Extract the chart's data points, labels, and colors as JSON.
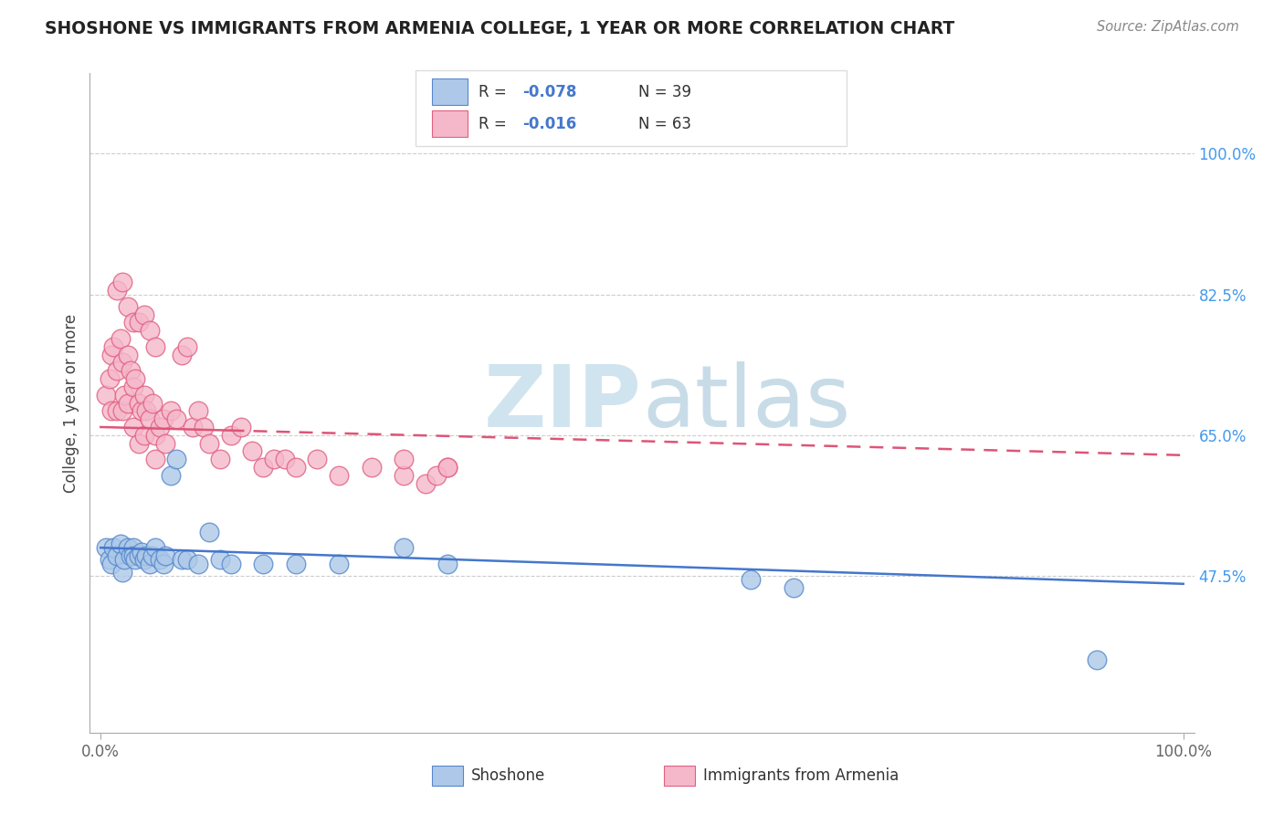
{
  "title": "SHOSHONE VS IMMIGRANTS FROM ARMENIA COLLEGE, 1 YEAR OR MORE CORRELATION CHART",
  "source": "Source: ZipAtlas.com",
  "ylabel": "College, 1 year or more",
  "xlim": [
    -0.01,
    1.01
  ],
  "ylim": [
    0.28,
    1.1
  ],
  "x_tick_labels": [
    "0.0%",
    "100.0%"
  ],
  "x_tick_pos": [
    0.0,
    1.0
  ],
  "y_tick_labels": [
    "47.5%",
    "65.0%",
    "82.5%",
    "100.0%"
  ],
  "y_tick_positions": [
    0.475,
    0.65,
    0.825,
    1.0
  ],
  "legend_r1": "-0.078",
  "legend_n1": "N = 39",
  "legend_r2": "-0.016",
  "legend_n2": "N = 63",
  "color_blue": "#adc8e8",
  "color_pink": "#f5b8cb",
  "edge_blue": "#5588cc",
  "edge_pink": "#e06080",
  "line_blue": "#4477cc",
  "line_pink": "#dd5577",
  "watermark_color": "#d0e4f0",
  "grid_color": "#cccccc",
  "title_color": "#222222",
  "source_color": "#888888",
  "ylabel_color": "#444444",
  "tick_color": "#666666",
  "right_tick_color": "#4499ee",
  "shoshone_x": [
    0.005,
    0.008,
    0.01,
    0.012,
    0.015,
    0.018,
    0.02,
    0.022,
    0.025,
    0.028,
    0.03,
    0.03,
    0.032,
    0.035,
    0.038,
    0.04,
    0.042,
    0.045,
    0.048,
    0.05,
    0.055,
    0.058,
    0.06,
    0.065,
    0.07,
    0.075,
    0.08,
    0.09,
    0.1,
    0.11,
    0.12,
    0.15,
    0.18,
    0.22,
    0.28,
    0.32,
    0.6,
    0.64,
    0.92
  ],
  "shoshone_y": [
    0.51,
    0.495,
    0.49,
    0.51,
    0.5,
    0.515,
    0.48,
    0.495,
    0.51,
    0.5,
    0.51,
    0.5,
    0.495,
    0.5,
    0.505,
    0.495,
    0.5,
    0.49,
    0.5,
    0.51,
    0.495,
    0.49,
    0.5,
    0.6,
    0.62,
    0.495,
    0.495,
    0.49,
    0.53,
    0.495,
    0.49,
    0.49,
    0.49,
    0.49,
    0.51,
    0.49,
    0.47,
    0.46,
    0.37
  ],
  "armenia_x": [
    0.005,
    0.008,
    0.01,
    0.01,
    0.012,
    0.015,
    0.015,
    0.018,
    0.02,
    0.02,
    0.022,
    0.025,
    0.025,
    0.028,
    0.03,
    0.03,
    0.032,
    0.035,
    0.035,
    0.038,
    0.04,
    0.04,
    0.042,
    0.045,
    0.048,
    0.05,
    0.05,
    0.055,
    0.058,
    0.06,
    0.065,
    0.07,
    0.075,
    0.08,
    0.085,
    0.09,
    0.095,
    0.1,
    0.11,
    0.12,
    0.13,
    0.14,
    0.15,
    0.16,
    0.17,
    0.18,
    0.2,
    0.22,
    0.25,
    0.28,
    0.3,
    0.32,
    0.015,
    0.02,
    0.025,
    0.03,
    0.035,
    0.04,
    0.045,
    0.05,
    0.28,
    0.31,
    0.32
  ],
  "armenia_y": [
    0.7,
    0.72,
    0.75,
    0.68,
    0.76,
    0.73,
    0.68,
    0.77,
    0.74,
    0.68,
    0.7,
    0.75,
    0.69,
    0.73,
    0.71,
    0.66,
    0.72,
    0.69,
    0.64,
    0.68,
    0.7,
    0.65,
    0.68,
    0.67,
    0.69,
    0.65,
    0.62,
    0.66,
    0.67,
    0.64,
    0.68,
    0.67,
    0.75,
    0.76,
    0.66,
    0.68,
    0.66,
    0.64,
    0.62,
    0.65,
    0.66,
    0.63,
    0.61,
    0.62,
    0.62,
    0.61,
    0.62,
    0.6,
    0.61,
    0.6,
    0.59,
    0.61,
    0.83,
    0.84,
    0.81,
    0.79,
    0.79,
    0.8,
    0.78,
    0.76,
    0.62,
    0.6,
    0.61
  ],
  "blue_line_x": [
    0.0,
    1.0
  ],
  "blue_line_y": [
    0.51,
    0.465
  ],
  "pink_line_x0_solid": 0.0,
  "pink_line_x1_solid": 0.12,
  "pink_line_x0_dashed": 0.12,
  "pink_line_x1_dashed": 1.0,
  "pink_line_y_at_0": 0.66,
  "pink_line_y_at_1": 0.625
}
